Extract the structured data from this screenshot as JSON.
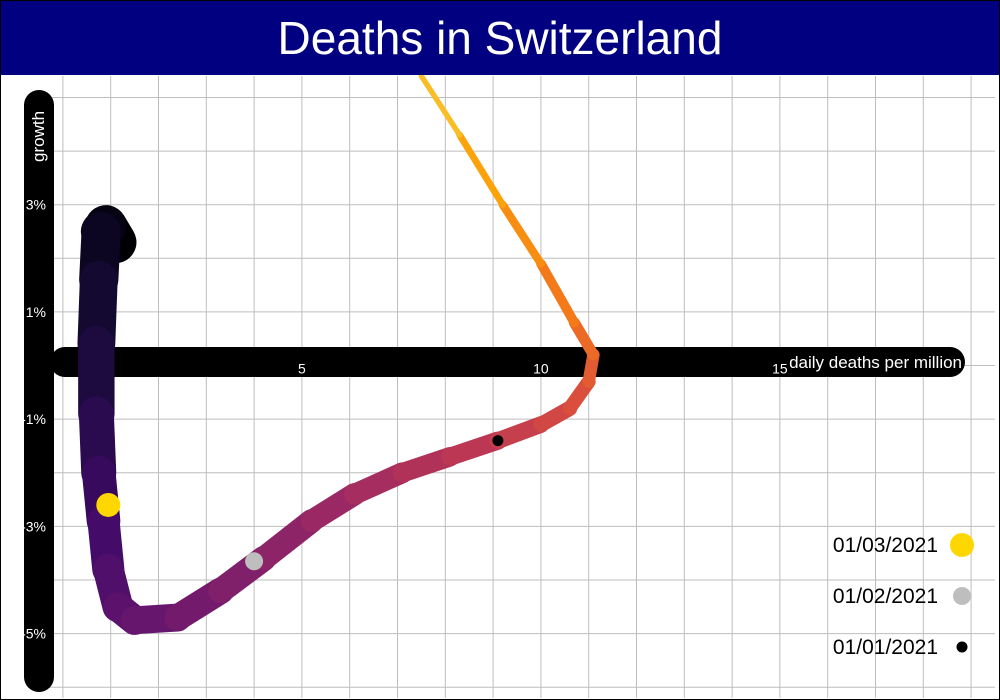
{
  "chart_data": {
    "type": "line",
    "title": "Deaths in Switzerland",
    "xlabel": "daily deaths per million",
    "ylabel": "growth",
    "xlim": [
      -0.5,
      19.5
    ],
    "ylim": [
      -6.2,
      5.4
    ],
    "x_ticks": [
      {
        "value": 5,
        "label": "5"
      },
      {
        "value": 10,
        "label": "10"
      },
      {
        "value": 15,
        "label": "15"
      }
    ],
    "y_ticks": [
      {
        "value": 3,
        "label": "3%"
      },
      {
        "value": 1,
        "label": "1%"
      },
      {
        "value": -1,
        "label": "-1%"
      },
      {
        "value": -3,
        "label": "-3%"
      },
      {
        "value": -5,
        "label": "-5%"
      }
    ],
    "grid": true,
    "color_scale": "inferno (dark purple at start → yellow at end)",
    "series": [
      {
        "points": [
          [
            1.1,
            2.3
          ],
          [
            0.9,
            2.6
          ],
          [
            0.8,
            2.5
          ],
          [
            0.75,
            1.6
          ],
          [
            0.7,
            0.4
          ],
          [
            0.7,
            -0.9
          ],
          [
            0.75,
            -2.0
          ],
          [
            0.85,
            -2.9
          ],
          [
            0.95,
            -3.8
          ],
          [
            1.15,
            -4.5
          ],
          [
            1.5,
            -4.75
          ],
          [
            2.4,
            -4.7
          ],
          [
            3.3,
            -4.2
          ],
          [
            4.2,
            -3.6
          ],
          [
            5.2,
            -2.9
          ],
          [
            6.1,
            -2.4
          ],
          [
            7.1,
            -2.0
          ],
          [
            8.1,
            -1.7
          ],
          [
            9.1,
            -1.4
          ],
          [
            10.0,
            -1.1
          ],
          [
            10.6,
            -0.8
          ],
          [
            11.0,
            -0.3
          ],
          [
            11.1,
            0.2
          ],
          [
            10.7,
            0.8
          ],
          [
            10.0,
            1.9
          ],
          [
            9.2,
            3.0
          ],
          [
            8.3,
            4.3
          ],
          [
            7.5,
            5.4
          ]
        ]
      }
    ],
    "markers": [
      {
        "label": "01/03/2021",
        "x": 0.95,
        "y": -2.6,
        "color": "#ffd700",
        "size": "large"
      },
      {
        "label": "01/02/2021",
        "x": 4.0,
        "y": -3.65,
        "color": "#bebebe",
        "size": "medium"
      },
      {
        "label": "01/01/2021",
        "x": 9.1,
        "y": -1.4,
        "color": "#000000",
        "size": "small"
      }
    ],
    "legend_position": "bottom-right"
  }
}
